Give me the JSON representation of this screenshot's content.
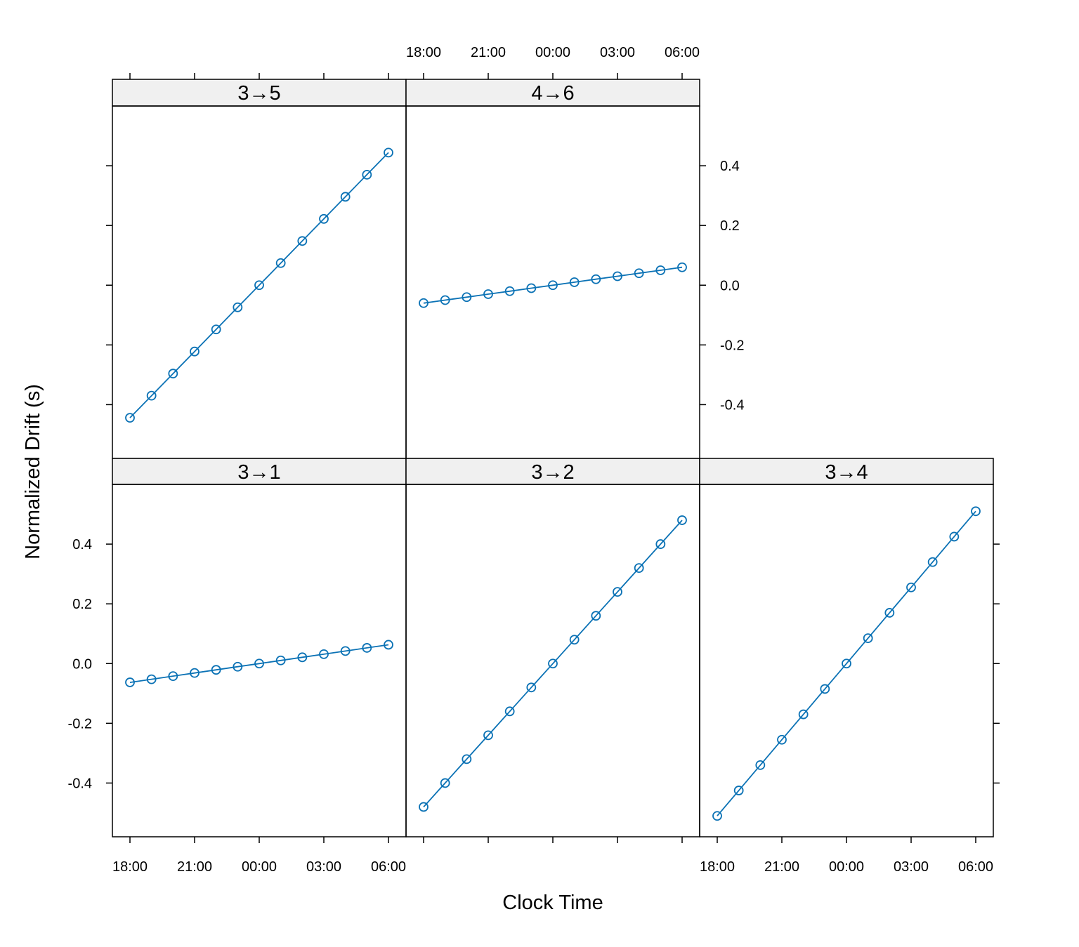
{
  "chart_data": {
    "type": "line",
    "xlabel": "Clock Time",
    "ylabel": "Normalized Drift (s)",
    "x_ticks": [
      "18:00",
      "21:00",
      "00:00",
      "03:00",
      "06:00"
    ],
    "y_ticks": [
      "-0.4",
      "-0.2",
      "0.0",
      "0.2",
      "0.4"
    ],
    "y_tick_values": [
      -0.4,
      -0.2,
      0.0,
      0.2,
      0.4
    ],
    "ylim": [
      -0.58,
      0.6
    ],
    "grid": false,
    "legend": "none",
    "x_hours_from_1800": [
      0,
      1,
      2,
      3,
      4,
      5,
      6,
      7,
      8,
      9,
      10,
      11,
      12
    ],
    "colors": {
      "series": "#0b72b5",
      "strip_bg": "#f0f0f0",
      "frame": "#000000"
    },
    "panels": [
      {
        "label": "3→5",
        "row": "top",
        "col": 1,
        "slope_per_hour": 0.074,
        "values": [
          -0.444,
          -0.37,
          -0.296,
          -0.222,
          -0.148,
          -0.074,
          0.0,
          0.074,
          0.148,
          0.222,
          0.296,
          0.37,
          0.444
        ]
      },
      {
        "label": "4→6",
        "row": "top",
        "col": 2,
        "slope_per_hour": 0.01,
        "values": [
          -0.06,
          -0.05,
          -0.04,
          -0.03,
          -0.02,
          -0.01,
          0.0,
          0.01,
          0.02,
          0.03,
          0.04,
          0.05,
          0.06
        ]
      },
      {
        "label": "3→1",
        "row": "bottom",
        "col": 1,
        "slope_per_hour": 0.0105,
        "values": [
          -0.063,
          -0.0525,
          -0.042,
          -0.0315,
          -0.021,
          -0.0105,
          0.0,
          0.0105,
          0.021,
          0.0315,
          0.042,
          0.0525,
          0.063
        ]
      },
      {
        "label": "3→2",
        "row": "bottom",
        "col": 2,
        "slope_per_hour": 0.08,
        "values": [
          -0.48,
          -0.4,
          -0.32,
          -0.24,
          -0.16,
          -0.08,
          0.0,
          0.08,
          0.16,
          0.24,
          0.32,
          0.4,
          0.48
        ]
      },
      {
        "label": "3→4",
        "row": "bottom",
        "col": 3,
        "slope_per_hour": 0.085,
        "values": [
          -0.51,
          -0.425,
          -0.34,
          -0.255,
          -0.17,
          -0.085,
          0.0,
          0.085,
          0.17,
          0.255,
          0.34,
          0.425,
          0.51
        ]
      }
    ]
  }
}
